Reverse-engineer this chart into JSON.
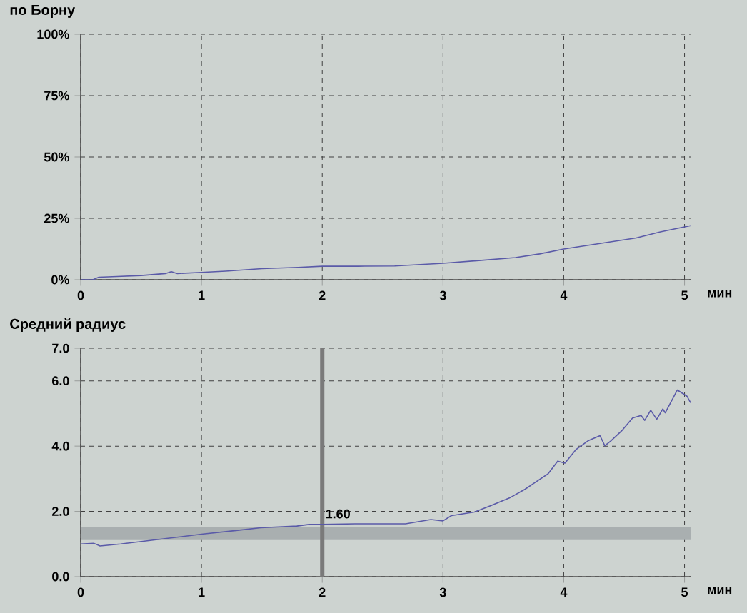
{
  "chart_data": [
    {
      "type": "line",
      "title": "по Борну",
      "xlabel": "мин",
      "xlim": [
        0,
        5.05
      ],
      "ylim": [
        0,
        100
      ],
      "xticks": [
        0,
        1,
        2,
        3,
        4,
        5
      ],
      "yticks": [
        {
          "value": 0,
          "label": "0%"
        },
        {
          "value": 25,
          "label": "25%"
        },
        {
          "value": 50,
          "label": "50%"
        },
        {
          "value": 75,
          "label": "75%"
        },
        {
          "value": 100,
          "label": "100%"
        }
      ],
      "grid": true,
      "series": [
        {
          "color": "#5a5aa8",
          "x": [
            0,
            0.1,
            0.15,
            0.3,
            0.5,
            0.7,
            0.75,
            0.8,
            1.0,
            1.2,
            1.5,
            1.8,
            2.0,
            2.3,
            2.6,
            3.0,
            3.3,
            3.6,
            3.8,
            4.0,
            4.2,
            4.4,
            4.6,
            4.8,
            4.9,
            5.05
          ],
          "values": [
            0,
            0,
            1,
            1.3,
            1.7,
            2.5,
            3.3,
            2.5,
            3,
            3.5,
            4.5,
            5,
            5.5,
            5.5,
            5.6,
            6.7,
            7.8,
            9,
            10.5,
            12.5,
            14,
            15.5,
            17,
            19.5,
            20.5,
            22
          ]
        }
      ]
    },
    {
      "type": "line",
      "title": "Средний радиус",
      "xlabel": "мин",
      "xlim": [
        0,
        5.05
      ],
      "ylim": [
        0,
        7
      ],
      "xticks": [
        0,
        1,
        2,
        3,
        4,
        5
      ],
      "yticks": [
        {
          "value": 0,
          "label": "0.0"
        },
        {
          "value": 2,
          "label": "2.0"
        },
        {
          "value": 4,
          "label": "4.0"
        },
        {
          "value": 6,
          "label": "6.0"
        },
        {
          "value": 7,
          "label": "7.0"
        }
      ],
      "grid": true,
      "bands": [
        {
          "axis": "y",
          "from": 1.12,
          "to": 1.52,
          "color": "#a9afb0"
        }
      ],
      "ref_lines": [
        {
          "axis": "x",
          "value": 2,
          "color": "#7a7a7a"
        }
      ],
      "annotations": [
        {
          "text": "1.60",
          "x": 2,
          "y": 1.6
        }
      ],
      "series": [
        {
          "color": "#5a5aa8",
          "x": [
            0,
            0.11,
            0.16,
            0.33,
            0.71,
            1.0,
            1.3,
            1.49,
            1.79,
            1.89,
            2.0,
            2.27,
            2.69,
            2.9,
            3.0,
            3.07,
            3.26,
            3.4,
            3.55,
            3.68,
            3.76,
            3.87,
            3.95,
            4.01,
            4.1,
            4.2,
            4.3,
            4.34,
            4.39,
            4.48,
            4.57,
            4.64,
            4.67,
            4.72,
            4.77,
            4.82,
            4.84,
            4.94,
            5.02,
            5.05
          ],
          "values": [
            1.0,
            1.02,
            0.94,
            1.0,
            1.17,
            1.3,
            1.42,
            1.5,
            1.55,
            1.6,
            1.6,
            1.62,
            1.62,
            1.75,
            1.71,
            1.87,
            1.98,
            2.18,
            2.41,
            2.68,
            2.88,
            3.15,
            3.54,
            3.48,
            3.89,
            4.16,
            4.32,
            4.01,
            4.16,
            4.47,
            4.86,
            4.94,
            4.79,
            5.1,
            4.82,
            5.14,
            5.02,
            5.72,
            5.53,
            5.33
          ]
        }
      ]
    }
  ]
}
